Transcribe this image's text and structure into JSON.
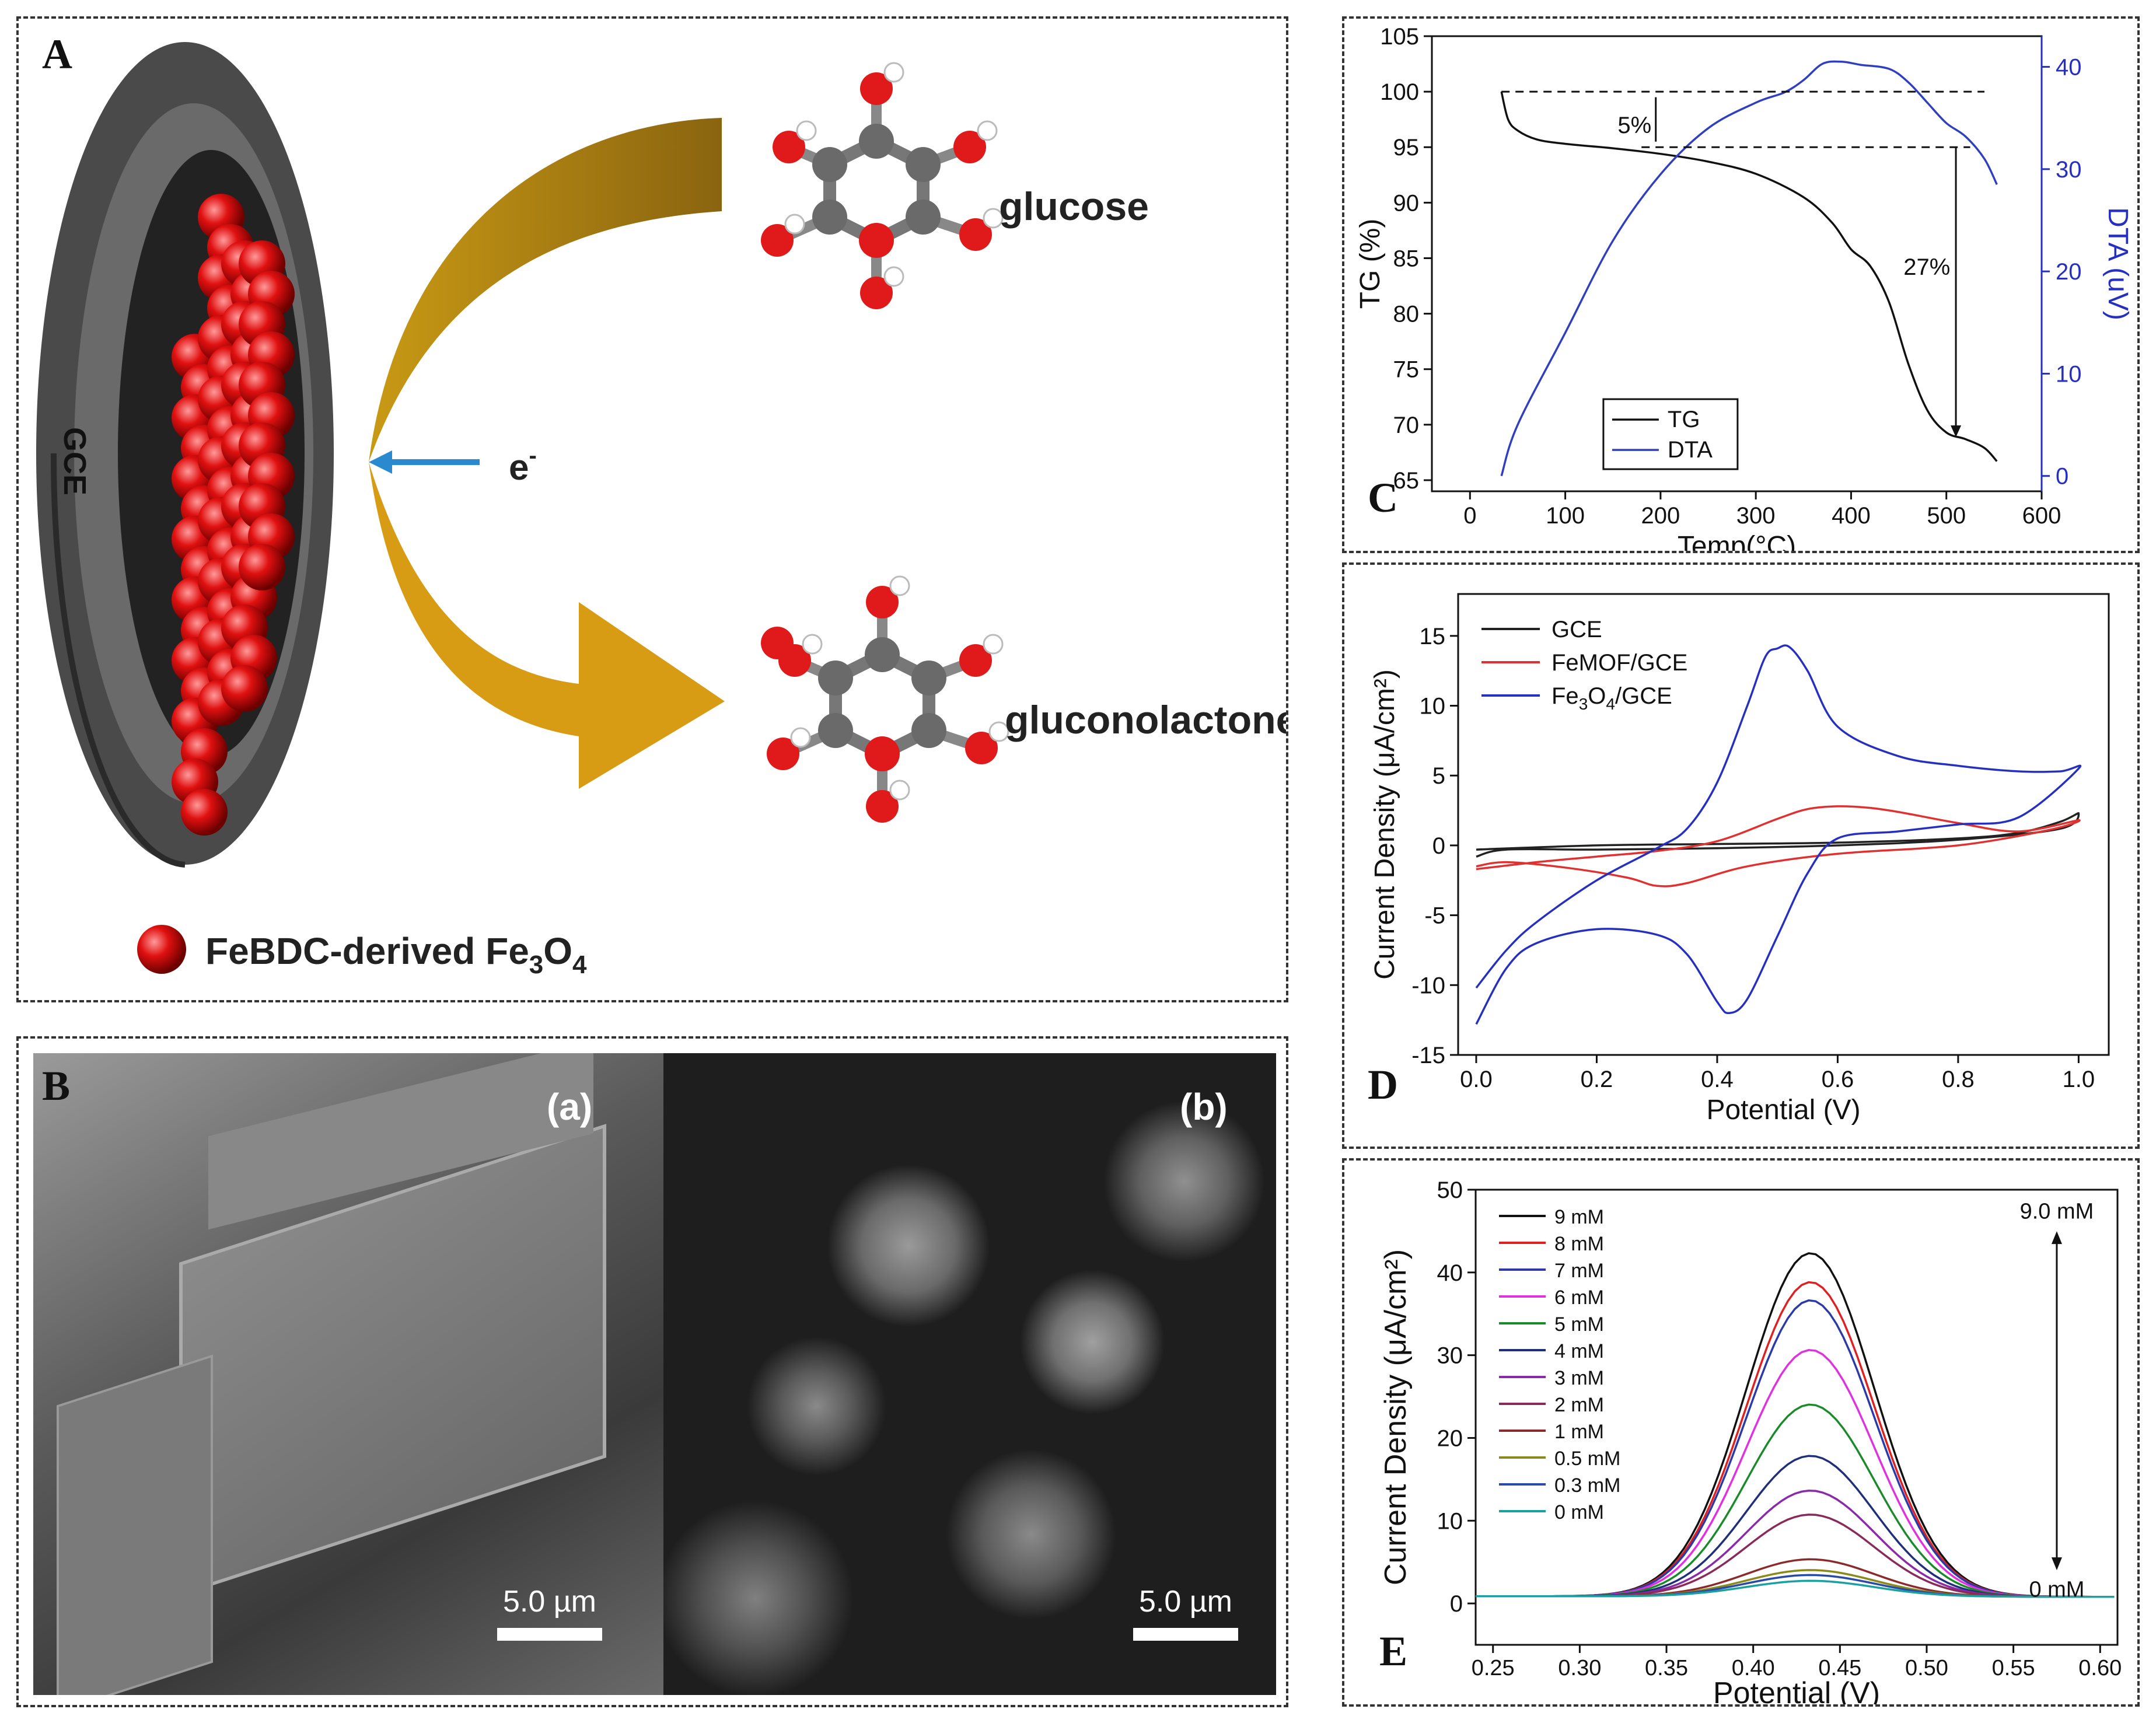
{
  "panels": {
    "a": {
      "label": "A",
      "electrode": "GCE",
      "electron": "e",
      "electron_sup": "-",
      "reactant": "glucose",
      "product": "gluconolactone",
      "legend_text": "FeBDC-derived Fe",
      "legend_sub": "3",
      "legend_text2": "O",
      "legend_sub2": "4"
    },
    "b": {
      "label": "B",
      "left_tag": "(a)",
      "right_tag": "(b)",
      "scale_left": "5.0 µm",
      "scale_right": "5.0 µm"
    },
    "c": {
      "label": "C"
    },
    "d": {
      "label": "D"
    },
    "e": {
      "label": "E"
    }
  },
  "chart_data": [
    {
      "id": "C",
      "type": "line",
      "xlabel": "Temp(°C)",
      "ylabel": "TG (%)",
      "y2label": "DTA (uV)",
      "xlim": [
        -40,
        600
      ],
      "ylim": [
        64,
        105
      ],
      "y2lim": [
        -1.5,
        43
      ],
      "xticks": [
        0,
        100,
        200,
        300,
        400,
        500,
        600
      ],
      "yticks": [
        65,
        70,
        75,
        80,
        85,
        90,
        95,
        100,
        105
      ],
      "y2ticks": [
        0,
        10,
        20,
        30,
        40
      ],
      "annotations": [
        "5%",
        "27%"
      ],
      "legend": [
        "TG",
        "DTA"
      ],
      "colors": {
        "TG": "#111111",
        "DTA": "#2f3fbf"
      },
      "series": [
        {
          "name": "TG",
          "axis": "left",
          "x": [
            33,
            40,
            50,
            70,
            100,
            150,
            200,
            250,
            300,
            350,
            380,
            400,
            420,
            440,
            460,
            480,
            500,
            520,
            540,
            553
          ],
          "y": [
            100,
            97.5,
            96.5,
            95.7,
            95.3,
            94.9,
            94.4,
            93.7,
            92.6,
            90.5,
            88.2,
            85.8,
            84.3,
            81,
            75.5,
            71.3,
            69.3,
            68.7,
            67.9,
            66.7
          ]
        },
        {
          "name": "DTA",
          "axis": "right",
          "x": [
            33,
            50,
            100,
            150,
            200,
            250,
            300,
            330,
            350,
            370,
            390,
            410,
            440,
            460,
            480,
            500,
            520,
            540,
            553
          ],
          "y": [
            0,
            5,
            14,
            23,
            29.5,
            34,
            36.5,
            37.5,
            38.7,
            40.3,
            40.5,
            40.2,
            39.8,
            38.5,
            36.5,
            34.5,
            33.2,
            31,
            28.5
          ]
        }
      ]
    },
    {
      "id": "D",
      "type": "line",
      "xlabel": "Potential (V)",
      "ylabel": "Current Density (μA/cm²)",
      "xlim": [
        -0.03,
        1.05
      ],
      "ylim": [
        -15,
        18
      ],
      "xticks": [
        0.0,
        0.2,
        0.4,
        0.6,
        0.8,
        1.0
      ],
      "yticks": [
        -15,
        -10,
        -5,
        0,
        5,
        10,
        15
      ],
      "legend": [
        "GCE",
        "FeMOF/GCE",
        "Fe3O4/GCE"
      ],
      "legend_parts": {
        "fe": "Fe",
        "s3": "3",
        "o": "O",
        "s4": "4",
        "gce": "/GCE"
      },
      "colors": {
        "GCE": "#222222",
        "FeMOF/GCE": "#e03030",
        "Fe3O4/GCE": "#2630c0"
      },
      "series": [
        {
          "name": "GCE",
          "x": [
            0.0,
            0.2,
            0.4,
            0.6,
            0.8,
            0.9,
            0.97,
            1.0,
            0.97,
            0.8,
            0.6,
            0.4,
            0.2,
            0.05,
            0.0
          ],
          "y": [
            -0.3,
            0.0,
            0.1,
            0.2,
            0.5,
            0.9,
            1.7,
            2.3,
            1.2,
            0.4,
            0.0,
            -0.2,
            -0.3,
            -0.3,
            -0.8
          ]
        },
        {
          "name": "FeMOF/GCE",
          "x": [
            0.0,
            0.1,
            0.2,
            0.3,
            0.4,
            0.5,
            0.55,
            0.6,
            0.65,
            0.7,
            0.8,
            0.9,
            1.0,
            0.95,
            0.8,
            0.6,
            0.45,
            0.35,
            0.3,
            0.25,
            0.15,
            0.05,
            0.0
          ],
          "y": [
            -1.7,
            -1.2,
            -0.8,
            -0.4,
            0.3,
            1.9,
            2.6,
            2.8,
            2.7,
            2.4,
            1.6,
            1.0,
            1.8,
            1.1,
            0.0,
            -0.6,
            -1.5,
            -2.7,
            -2.9,
            -2.3,
            -1.6,
            -1.2,
            -1.5
          ]
        },
        {
          "name": "Fe3O4/GCE",
          "x": [
            0.0,
            0.05,
            0.1,
            0.2,
            0.3,
            0.35,
            0.4,
            0.45,
            0.48,
            0.5,
            0.52,
            0.55,
            0.6,
            0.7,
            0.8,
            0.9,
            0.97,
            1.0,
            0.9,
            0.8,
            0.7,
            0.6,
            0.55,
            0.5,
            0.45,
            0.42,
            0.4,
            0.35,
            0.3,
            0.2,
            0.1,
            0.05,
            0.0
          ],
          "y": [
            -10.2,
            -7.5,
            -5.5,
            -2.5,
            -0.2,
            1.2,
            4.5,
            10.0,
            13.5,
            14.1,
            14.2,
            12.5,
            8.5,
            6.4,
            5.7,
            5.3,
            5.3,
            5.5,
            2.0,
            1.5,
            1.0,
            0.5,
            -2.0,
            -6.5,
            -11.0,
            -12.0,
            -11.2,
            -7.8,
            -6.4,
            -6.0,
            -7.0,
            -8.8,
            -12.8
          ]
        }
      ]
    },
    {
      "id": "E",
      "type": "line",
      "xlabel": "Potential (V)",
      "ylabel": "Current Density (μA/cm²)",
      "xlim": [
        0.24,
        0.61
      ],
      "ylim": [
        -5,
        50
      ],
      "xticks": [
        0.25,
        0.3,
        0.35,
        0.4,
        0.45,
        0.5,
        0.55,
        0.6
      ],
      "yticks": [
        0,
        10,
        20,
        30,
        40,
        50
      ],
      "annotations": [
        "9.0 mM",
        "0 mM"
      ],
      "peak_x": 0.433,
      "width": 0.052,
      "series": [
        {
          "name": "9 mM",
          "color": "#111111",
          "peak": 41.5
        },
        {
          "name": "8 mM",
          "color": "#e02020",
          "peak": 38.0
        },
        {
          "name": "7 mM",
          "color": "#2a3aa8",
          "peak": 35.8
        },
        {
          "name": "6 mM",
          "color": "#e030e0",
          "peak": 29.8
        },
        {
          "name": "5 mM",
          "color": "#1a8a2a",
          "peak": 23.2
        },
        {
          "name": "4 mM",
          "color": "#1f2f7a",
          "peak": 17.0
        },
        {
          "name": "3 mM",
          "color": "#8a2aa8",
          "peak": 12.8
        },
        {
          "name": "2 mM",
          "color": "#8a2a5a",
          "peak": 9.9
        },
        {
          "name": "1 mM",
          "color": "#8a2a2a",
          "peak": 4.5
        },
        {
          "name": "0.5 mM",
          "color": "#8a8a1a",
          "peak": 3.2
        },
        {
          "name": "0.3 mM",
          "color": "#2a4aa8",
          "peak": 2.6
        },
        {
          "name": "0 mM",
          "color": "#1aa0a0",
          "peak": 1.9
        }
      ]
    }
  ]
}
